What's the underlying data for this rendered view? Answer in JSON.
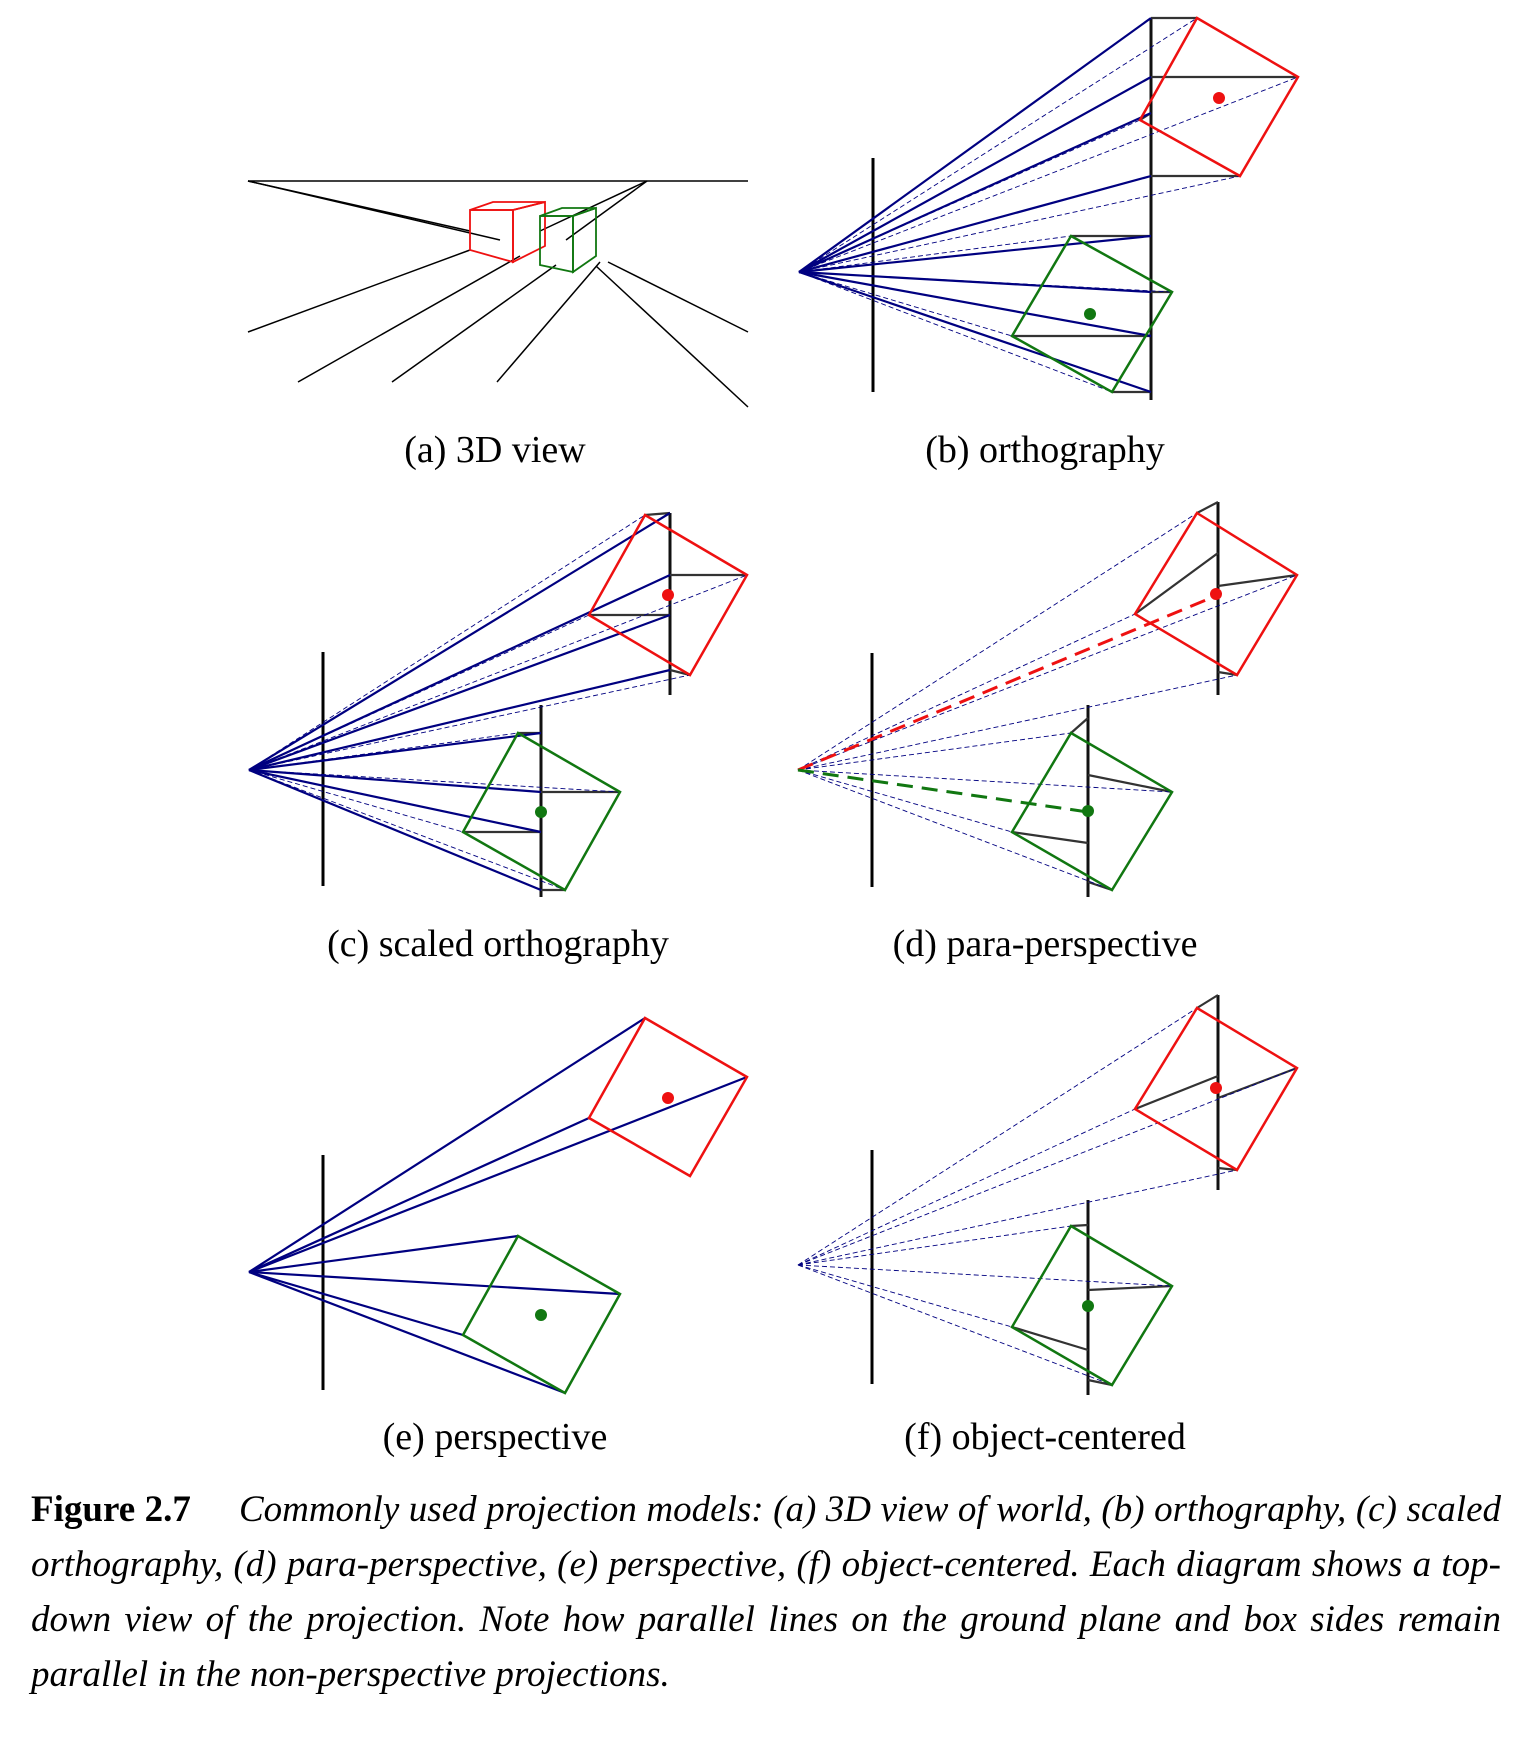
{
  "subfigures": {
    "a": {
      "label": "(a) 3D view"
    },
    "b": {
      "label": "(b) orthography"
    },
    "c": {
      "label": "(c) scaled orthography"
    },
    "d": {
      "label": "(d) para-perspective"
    },
    "e": {
      "label": "(e) perspective"
    },
    "f": {
      "label": "(f) object-centered"
    }
  },
  "caption": {
    "label": "Figure 2.7",
    "text": "Commonly used projection models: (a) 3D view of world, (b) orthography, (c) scaled orthography, (d) para-perspective, (e) perspective, (f) object-centered. Each diagram shows a top-down view of the projection. Note how parallel lines on the ground plane and box sides remain parallel in the non-perspective projections."
  },
  "colors": {
    "ray": "#000080",
    "red_box": "#ee1111",
    "green_box": "#117711",
    "plane": "#111111",
    "construction": "#333333"
  }
}
